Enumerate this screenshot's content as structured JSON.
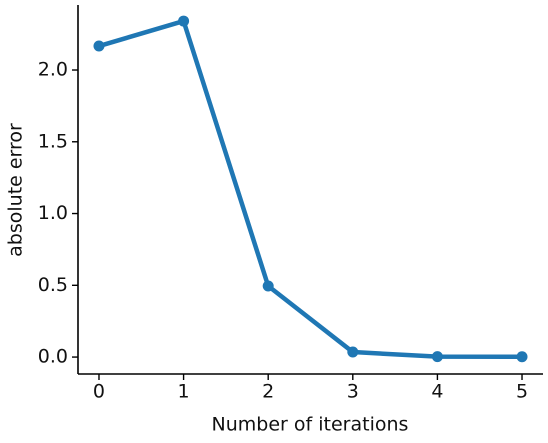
{
  "chart_data": {
    "type": "line",
    "x_label": "Number of iterations",
    "y_label": "absolute error",
    "x": [
      0,
      1,
      2,
      3,
      4,
      5
    ],
    "values": [
      2.167,
      2.341,
      0.495,
      0.035,
      0.003,
      0.002
    ],
    "color": "#1f77b4",
    "xlim": [
      -0.248,
      5.248
    ],
    "ylim": [
      -0.118,
      2.453
    ],
    "xticks": [
      0,
      1,
      2,
      3,
      4,
      5
    ],
    "yticks": [
      {
        "value": 0,
        "label": "0.0"
      },
      0.5,
      {
        "value": 1,
        "label": "1.0"
      },
      1.5,
      {
        "value": 2,
        "label": "2.0"
      }
    ],
    "grid": false
  }
}
